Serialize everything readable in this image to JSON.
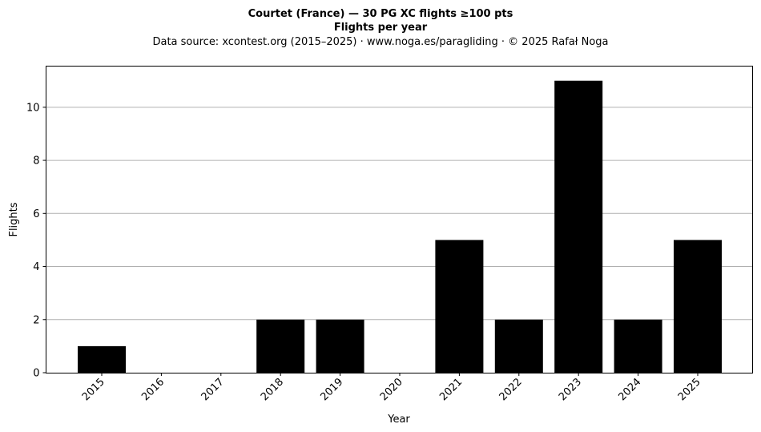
{
  "chart_data": {
    "type": "bar",
    "title": "Courtet (France)  —  30 PG XC flights ≥100 pts",
    "title_line2": "Flights per year",
    "subtitle": "Data source: xcontest.org (2015–2025)  ·  www.noga.es/paragliding  ·  © 2025 Rafał Noga",
    "xlabel": "Year",
    "ylabel": "Flights",
    "categories": [
      "2015",
      "2016",
      "2017",
      "2018",
      "2019",
      "2020",
      "2021",
      "2022",
      "2023",
      "2024",
      "2025"
    ],
    "values": [
      1,
      0,
      0,
      2,
      2,
      0,
      5,
      2,
      11,
      2,
      5
    ],
    "ylim": [
      0,
      11.55
    ],
    "yticks": [
      0,
      2,
      4,
      6,
      8,
      10
    ],
    "grid": "horizontal",
    "bar_color": "#000000",
    "grid_color": "#b0b0b0"
  }
}
